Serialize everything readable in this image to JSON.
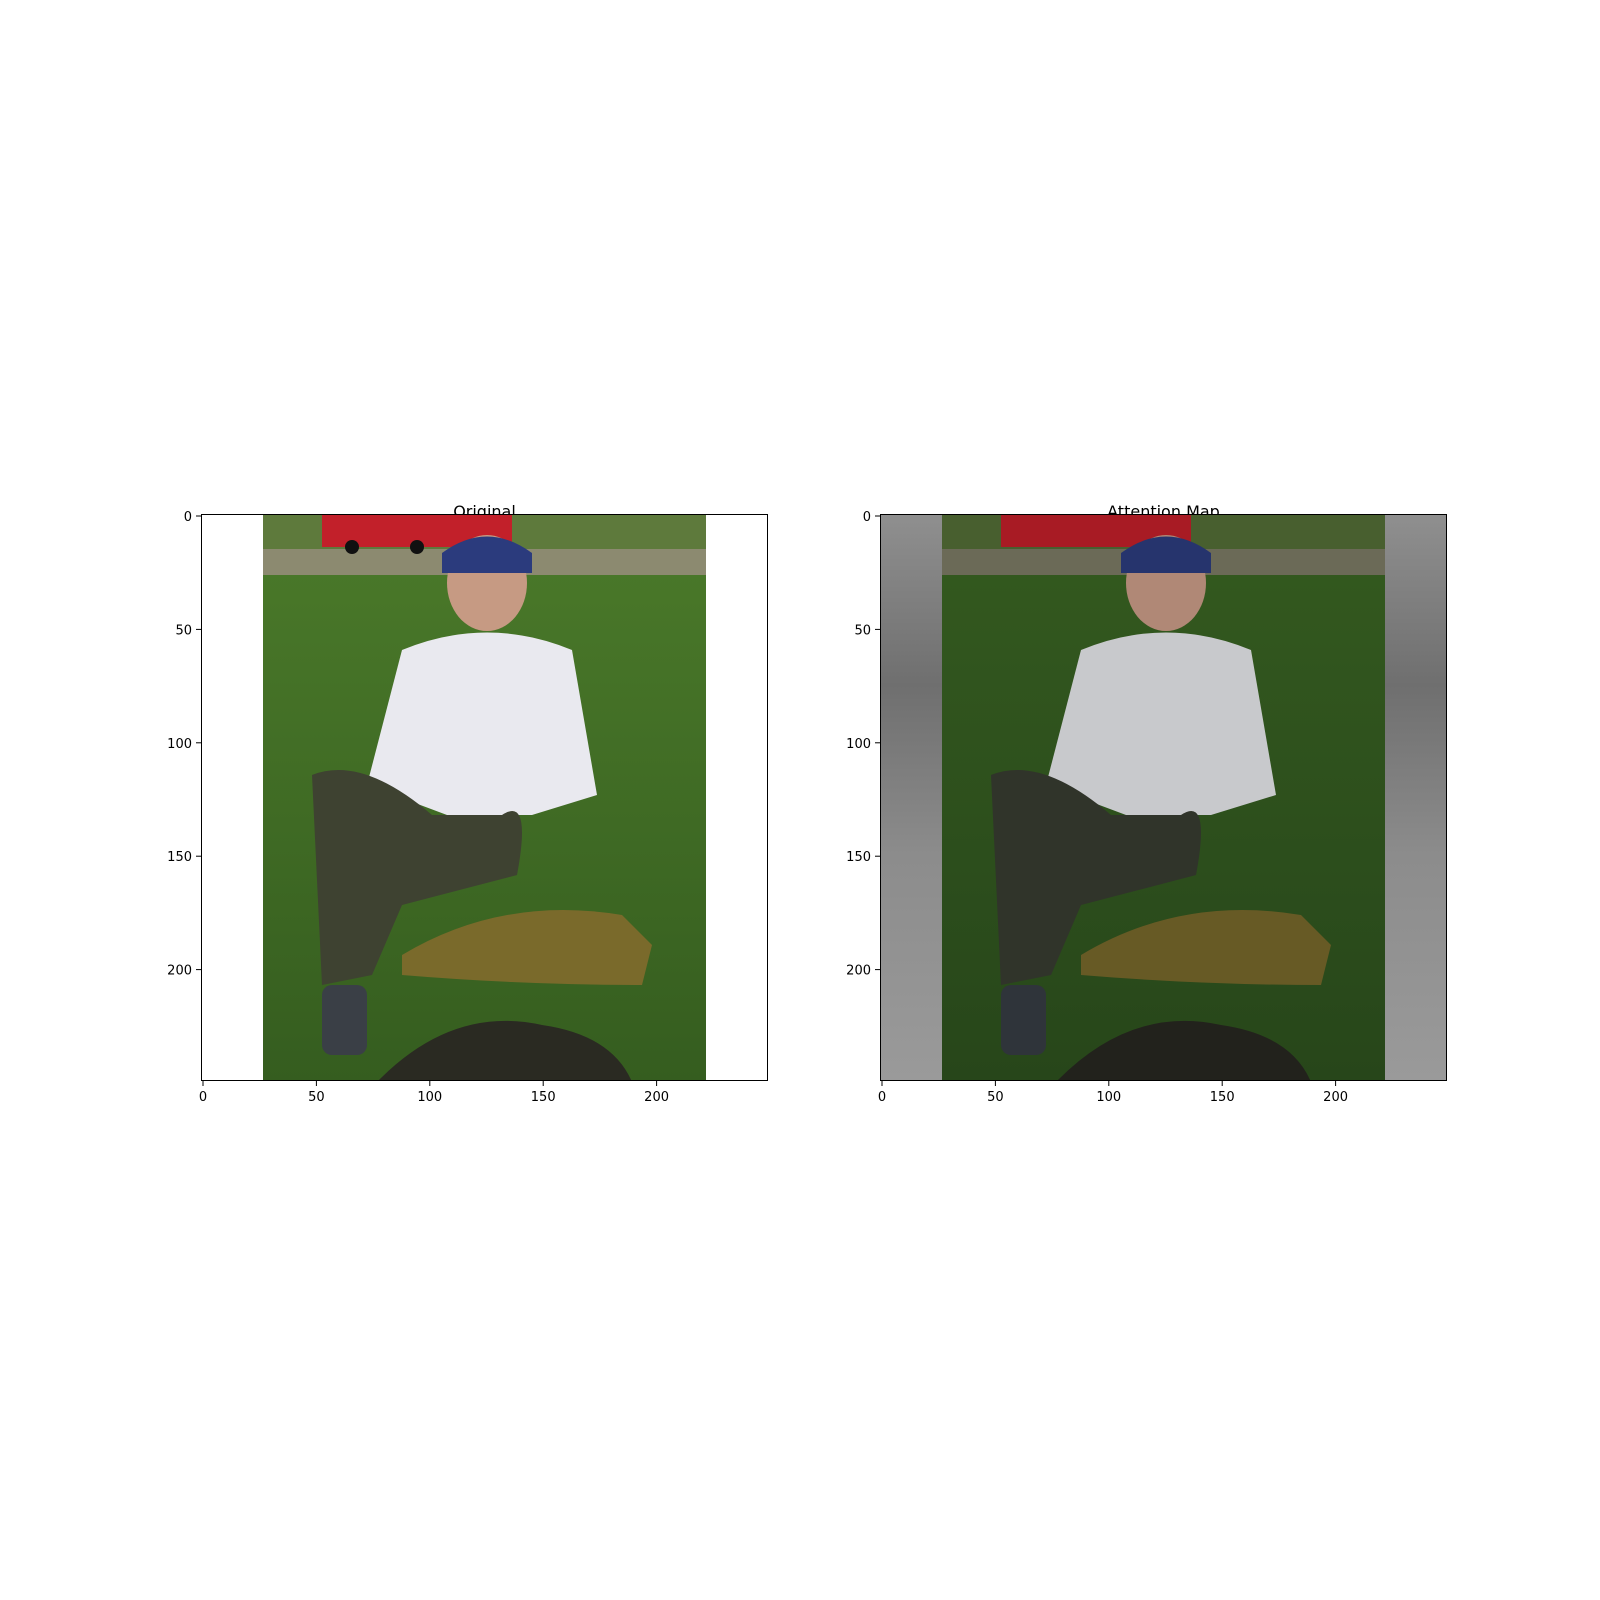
{
  "figure": {
    "panels": [
      {
        "title": "Original"
      },
      {
        "title": "Attention Map"
      }
    ],
    "x_ticks": [
      "0",
      "50",
      "100",
      "150",
      "200"
    ],
    "y_ticks": [
      "0",
      "50",
      "100",
      "150",
      "200"
    ],
    "axis_range": {
      "x": [
        0,
        250
      ],
      "y": [
        0,
        250
      ]
    },
    "colors": {
      "grass": "#3f6b26",
      "shirt": "#e9e9ef",
      "trousers": "#3e4231",
      "cap": "#2b3b7d",
      "car": "#c2202a",
      "fish": "#7a6a2b",
      "net": "#2a2a22",
      "padding_gray": "#8a8a8a"
    }
  }
}
